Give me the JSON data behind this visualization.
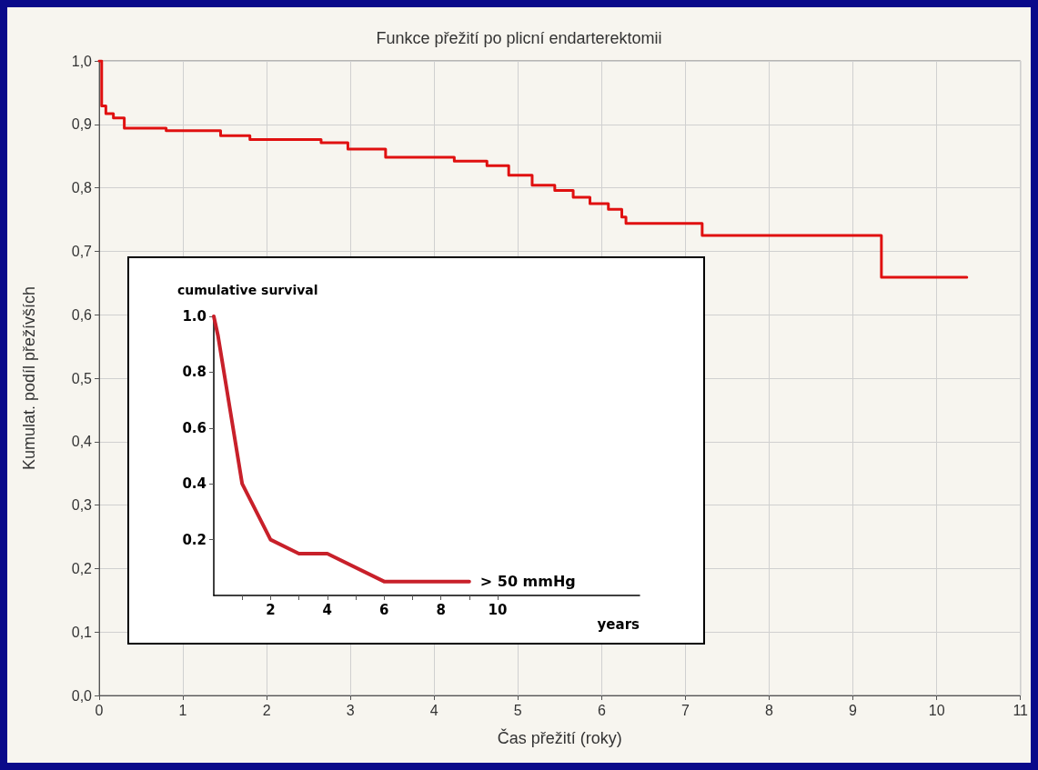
{
  "chart_data": [
    {
      "type": "step",
      "title": "Funkce přežití po plicní endarterektomii",
      "xlabel": "Čas přežití (roky)",
      "ylabel": "Kumulat. podíl přežívších",
      "grid": true,
      "marker": "none",
      "line_style": "solid",
      "xlim": [
        0,
        11
      ],
      "xticks": [
        0,
        1,
        2,
        3,
        4,
        5,
        6,
        7,
        8,
        9,
        10,
        11
      ],
      "ylim": [
        0,
        1
      ],
      "yticks": [
        {
          "value": 0,
          "label": "0,0"
        },
        {
          "value": 0.1,
          "label": "0,1"
        },
        {
          "value": 0.2,
          "label": "0,2"
        },
        {
          "value": 0.3,
          "label": "0,3"
        },
        {
          "value": 0.4,
          "label": "0,4"
        },
        {
          "value": 0.5,
          "label": "0,5"
        },
        {
          "value": 0.6,
          "label": "0,6"
        },
        {
          "value": 0.7,
          "label": "0,7"
        },
        {
          "value": 0.8,
          "label": "0,8"
        },
        {
          "value": 0.9,
          "label": "0,9"
        },
        {
          "value": 1,
          "label": "1,0"
        }
      ],
      "series": [
        {
          "color": "#e01010",
          "x": [
            0,
            0.03,
            0.08,
            0.17,
            0.3,
            0.8,
            1.45,
            1.8,
            2.65,
            2.97,
            3.42,
            4.24,
            4.63,
            4.89,
            5.17,
            5.44,
            5.66,
            5.86,
            6.08,
            6.24,
            6.29,
            7.2,
            9.34,
            10.36
          ],
          "values": [
            1,
            0.929,
            0.917,
            0.91,
            0.894,
            0.89,
            0.882,
            0.876,
            0.871,
            0.861,
            0.848,
            0.842,
            0.835,
            0.82,
            0.804,
            0.796,
            0.785,
            0.775,
            0.766,
            0.754,
            0.744,
            0.725,
            0.659,
            0.659
          ]
        }
      ]
    },
    {
      "type": "line",
      "ylabel": "cumulative survival",
      "xlabel": "years",
      "marker": "none",
      "line_style": "solid",
      "xlim": [
        0,
        15
      ],
      "xticks": [
        {
          "value": 1,
          "label": null
        },
        2,
        {
          "value": 3,
          "label": null
        },
        4,
        {
          "value": 5,
          "label": null
        },
        6,
        {
          "value": 7,
          "label": null
        },
        8,
        {
          "value": 9,
          "label": null
        },
        10
      ],
      "ylim": [
        0,
        1
      ],
      "yticks": [
        0.2,
        0.4,
        0.6,
        0.8,
        {
          "value": 1,
          "label": "1.0"
        }
      ],
      "annotations": [
        {
          "text": "> 50 mmHg",
          "x": 9,
          "y": 0.05
        }
      ],
      "series": [
        {
          "color": "#c8202a",
          "x": [
            0,
            0.15,
            1,
            2,
            3,
            4,
            6,
            9
          ],
          "values": [
            1,
            0.93,
            0.4,
            0.2,
            0.15,
            0.15,
            0.05,
            0.05
          ]
        }
      ]
    }
  ]
}
